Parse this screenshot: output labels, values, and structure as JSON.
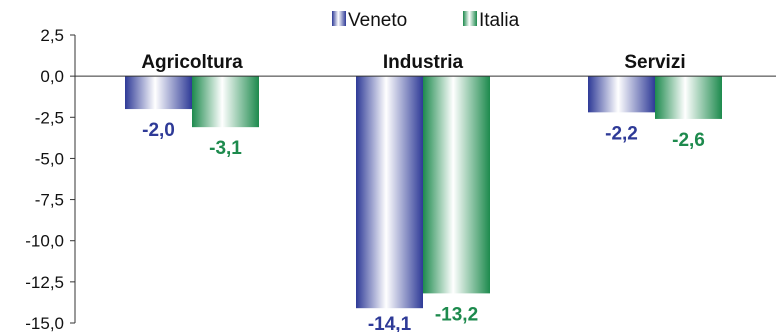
{
  "chart_data": {
    "type": "bar",
    "title": "",
    "xlabel": "",
    "ylabel": "",
    "categories": [
      "Agricoltura",
      "Industria",
      "Servizi"
    ],
    "series": [
      {
        "name": "Veneto",
        "values": [
          -2.0,
          -14.1,
          -2.2
        ],
        "labels": [
          "-2,0",
          "-14,1",
          "-2,2"
        ],
        "color": "#2e3a97"
      },
      {
        "name": "Italia",
        "values": [
          -3.1,
          -13.2,
          -2.6
        ],
        "labels": [
          "-3,1",
          "-13,2",
          "-2,6"
        ],
        "color": "#1d8a4d"
      }
    ],
    "ylim": [
      -15.0,
      2.5
    ],
    "yticks": [
      2.5,
      0.0,
      -2.5,
      -5.0,
      -7.5,
      -10.0,
      -12.5,
      -15.0
    ],
    "ytick_labels": [
      "2,5",
      "0,0",
      "-2,5",
      "-5,0",
      "-7,5",
      "-10,0",
      "-12,5",
      "-15,0"
    ],
    "legend_position": "top-center",
    "grid": false
  }
}
